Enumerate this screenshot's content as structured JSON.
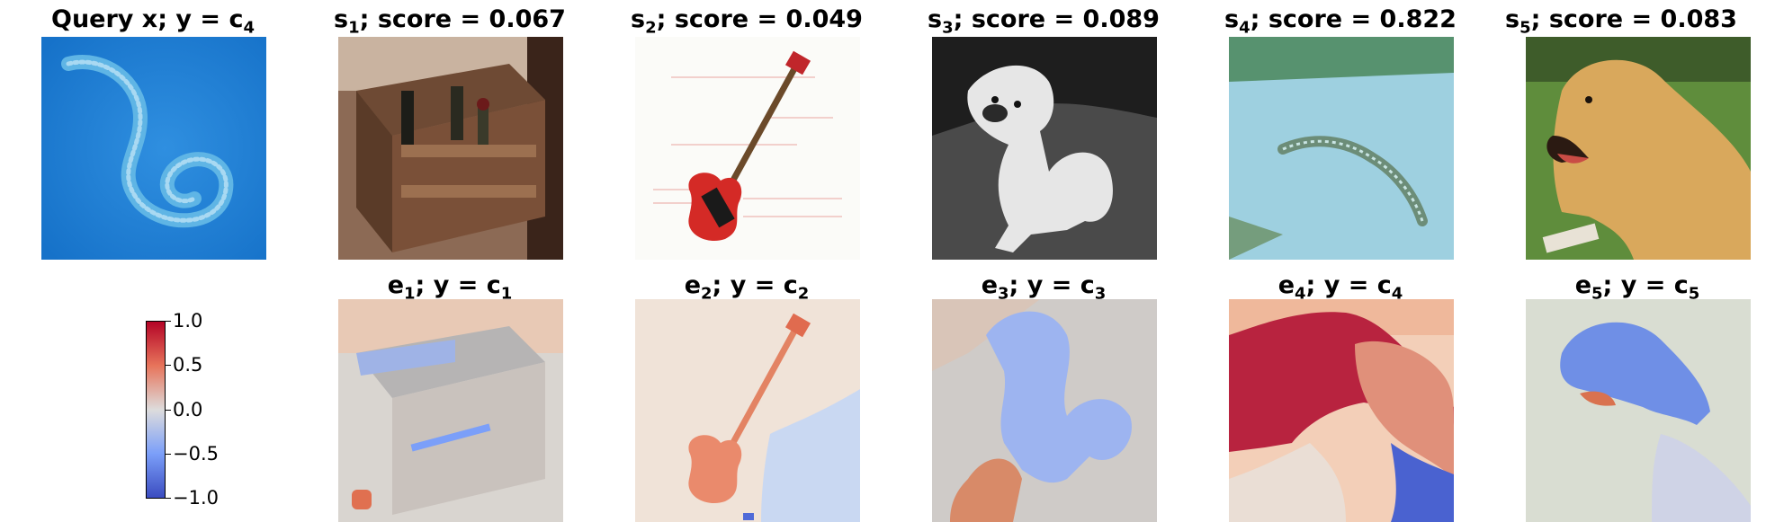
{
  "titles": [
    {
      "main": "Query x; y = c",
      "sub": "4"
    },
    {
      "pre": "s",
      "idx": "1",
      "rest": "; score = 0.067"
    },
    {
      "pre": "s",
      "idx": "2",
      "rest": "; score = 0.049"
    },
    {
      "pre": "s",
      "idx": "3",
      "rest": "; score = 0.089"
    },
    {
      "pre": "s",
      "idx": "4",
      "rest": "; score = 0.822"
    },
    {
      "pre": "s",
      "idx": "5",
      "rest": "; score = 0.083"
    }
  ],
  "explanations": [
    {
      "pre": "e",
      "idx": "1",
      "rest": "; y = c",
      "cls": "1"
    },
    {
      "pre": "e",
      "idx": "2",
      "rest": "; y = c",
      "cls": "2"
    },
    {
      "pre": "e",
      "idx": "3",
      "rest": "; y = c",
      "cls": "3"
    },
    {
      "pre": "e",
      "idx": "4",
      "rest": "; y = c",
      "cls": "4"
    },
    {
      "pre": "e",
      "idx": "5",
      "rest": "; y = c",
      "cls": "5"
    }
  ],
  "colorbar": {
    "ticks": [
      "1.0",
      "0.5",
      "0.0",
      "−0.5",
      "−1.0"
    ],
    "colormap": "coolwarm",
    "range": [
      -1.0,
      1.0
    ]
  },
  "colors": {
    "hot": "#b40426",
    "warm": "#e7745b",
    "neutral": "#dddcdc",
    "cool": "#7b9ff9",
    "cold": "#3b4cc0"
  }
}
